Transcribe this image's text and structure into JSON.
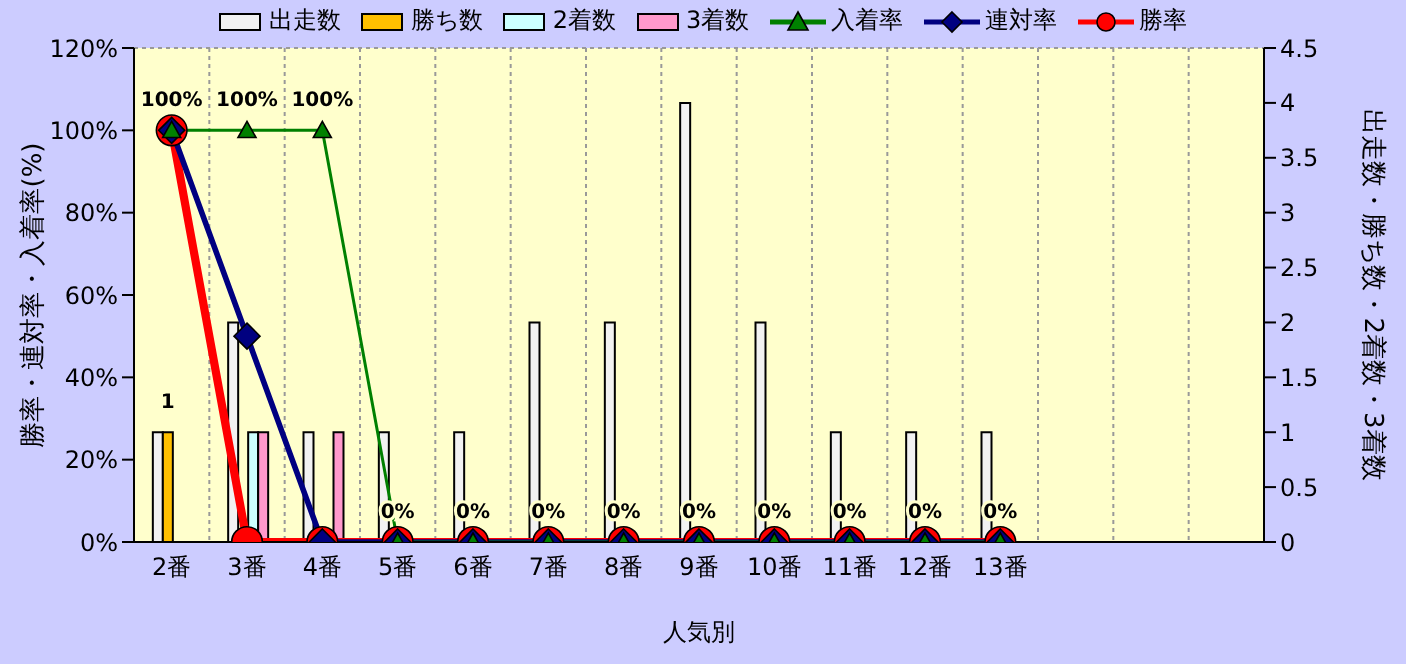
{
  "chart_data": {
    "type": "bar",
    "xlabel": "人気別",
    "ylabel": "勝率・連対率・入着率(%)",
    "y2label": "出走数・勝ち数・2着数・3着数",
    "categories": [
      "2番",
      "3番",
      "4番",
      "5番",
      "6番",
      "7番",
      "8番",
      "9番",
      "10番",
      "11番",
      "12番",
      "13番",
      null,
      null,
      null
    ],
    "series": [
      {
        "name": "出走数",
        "axis": "y2",
        "color": "#f2f2f2",
        "values": [
          1,
          2,
          1,
          1,
          1,
          2,
          2,
          4,
          2,
          1,
          1,
          1,
          null,
          null,
          null
        ]
      },
      {
        "name": "勝ち数",
        "axis": "y2",
        "color": "#ffc000",
        "values": [
          1,
          0,
          0,
          0,
          0,
          0,
          0,
          0,
          0,
          0,
          0,
          0,
          null,
          null,
          null
        ],
        "value_labels": [
          "1",
          null,
          null,
          null,
          null,
          null,
          null,
          null,
          null,
          null,
          null,
          null,
          null,
          null,
          null
        ]
      },
      {
        "name": "2着数",
        "axis": "y2",
        "color": "#ccffff",
        "values": [
          0,
          1,
          0,
          0,
          0,
          0,
          0,
          0,
          0,
          0,
          0,
          0,
          null,
          null,
          null
        ]
      },
      {
        "name": "3着数",
        "axis": "y2",
        "color": "#ff99cc",
        "values": [
          0,
          1,
          1,
          0,
          0,
          0,
          0,
          0,
          0,
          0,
          0,
          0,
          null,
          null,
          null
        ]
      },
      {
        "name": "入着率",
        "type": "line",
        "marker": "triangle",
        "color": "#008000",
        "values": [
          100,
          100,
          100,
          0,
          0,
          0,
          0,
          0,
          0,
          0,
          0,
          0,
          null,
          null,
          null
        ],
        "value_labels": [
          "100%",
          "100%",
          "100%",
          "0%",
          "0%",
          "0%",
          "0%",
          "0%",
          "0%",
          "0%",
          "0%",
          "0%",
          null,
          null,
          null
        ]
      },
      {
        "name": "連対率",
        "type": "line",
        "marker": "diamond",
        "color": "#000080",
        "values": [
          100,
          50,
          0,
          0,
          0,
          0,
          0,
          0,
          0,
          0,
          0,
          0,
          null,
          null,
          null
        ]
      },
      {
        "name": "勝率",
        "type": "line",
        "marker": "circle",
        "color": "#ff0000",
        "values": [
          100,
          0,
          0,
          0,
          0,
          0,
          0,
          0,
          0,
          0,
          0,
          0,
          null,
          null,
          null
        ]
      }
    ],
    "ylim": [
      0,
      120
    ],
    "yticks": [
      {
        "value": 0,
        "label": "0%"
      },
      {
        "value": 20,
        "label": "20%"
      },
      {
        "value": 40,
        "label": "40%"
      },
      {
        "value": 60,
        "label": "60%"
      },
      {
        "value": 80,
        "label": "80%"
      },
      {
        "value": 100,
        "label": "100%"
      },
      {
        "value": 120,
        "label": "120%"
      }
    ],
    "y2lim": [
      0,
      4.5
    ],
    "y2ticks": [
      0,
      0.5,
      1,
      1.5,
      2,
      2.5,
      3,
      3.5,
      4,
      4.5
    ],
    "grid": true,
    "legend": "top",
    "line_style": "solid"
  }
}
